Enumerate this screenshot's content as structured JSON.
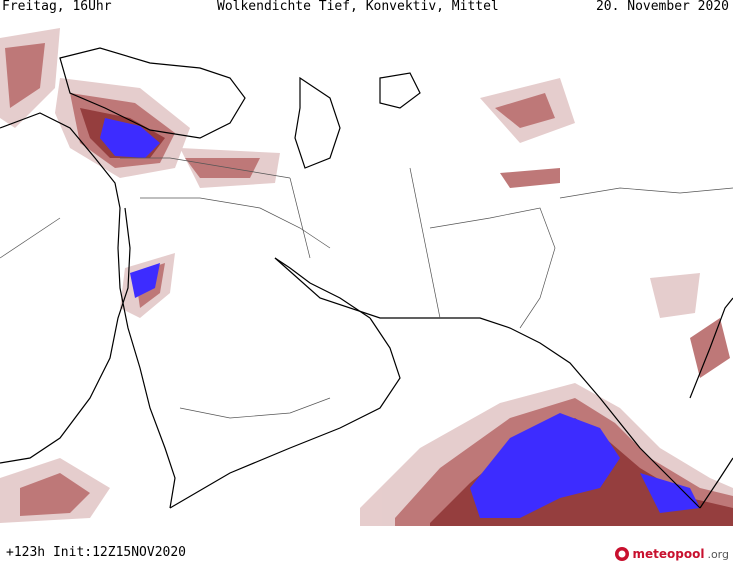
{
  "header": {
    "left": "Freitag, 16Uhr",
    "title": "Wolkendichte  Tief, Konvektiv, Mittel",
    "right": "20. November 2020"
  },
  "footer": {
    "left": "+123h Init:12Z15NOV2020",
    "logo_main": "meteopool",
    "logo_suffix": ".org"
  },
  "colors": {
    "coast": "#000000",
    "border": "#555555",
    "cloud_low": "#e3c8c8",
    "cloud_mid": "#b86a6a",
    "cloud_high": "#8a2a2a",
    "convective": "#3d2cff",
    "logo_red": "#c8102e"
  }
}
